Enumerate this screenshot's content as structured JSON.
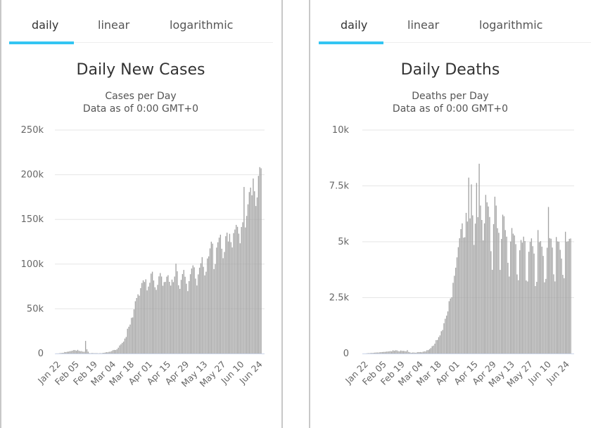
{
  "tabs": [
    "daily",
    "linear",
    "logarithmic"
  ],
  "active_tab": "daily",
  "colors": {
    "accent": "#33c5f3",
    "bar": "#a3a3a3",
    "grid": "#e6e6e6",
    "axis": "#ccd6eb"
  },
  "chart_data": [
    {
      "type": "bar",
      "title": "Daily New Cases",
      "subtitle": "Cases per Day",
      "subtitle2": "Data as of 0:00 GMT+0",
      "xlabel": "",
      "ylabel": "",
      "ylim": [
        0,
        250000
      ],
      "yticks": [
        0,
        50000,
        100000,
        150000,
        200000,
        250000
      ],
      "ytick_labels": [
        "0",
        "50k",
        "100k",
        "150k",
        "200k",
        "250k"
      ],
      "xtick_labels": [
        "Jan 22",
        "Feb 05",
        "Feb 19",
        "Mar 04",
        "Mar 18",
        "Apr 01",
        "Apr 15",
        "Apr 29",
        "May 13",
        "May 27",
        "Jun 10",
        "Jun 24"
      ],
      "start_date": "Jan 22",
      "grid": true,
      "values": [
        100,
        100,
        300,
        500,
        700,
        800,
        1700,
        1500,
        2000,
        2100,
        2600,
        2800,
        3200,
        3900,
        3700,
        3100,
        4100,
        3000,
        2600,
        2700,
        2000,
        2000,
        14100,
        4700,
        2100,
        400,
        300,
        600,
        400,
        300,
        400,
        300,
        200,
        400,
        300,
        600,
        800,
        1100,
        1500,
        1400,
        1900,
        2100,
        2800,
        3800,
        4000,
        3900,
        4800,
        6500,
        9000,
        10400,
        11900,
        13300,
        16700,
        18500,
        27700,
        30000,
        32400,
        39900,
        40400,
        49400,
        58500,
        62100,
        66200,
        64700,
        73100,
        78900,
        81900,
        80000,
        83000,
        70600,
        74900,
        79200,
        89400,
        91500,
        81700,
        74100,
        71200,
        76800,
        86300,
        90000,
        86100,
        75800,
        79900,
        80100,
        86000,
        87600,
        80200,
        76000,
        82700,
        79900,
        86100,
        100500,
        92000,
        76300,
        72300,
        82400,
        88900,
        93500,
        85900,
        78100,
        69800,
        81000,
        88700,
        95100,
        98600,
        96400,
        83800,
        76100,
        88500,
        96000,
        101000,
        107800,
        97000,
        87400,
        91500,
        106300,
        108700,
        117600,
        125100,
        122900,
        94400,
        100100,
        118500,
        124400,
        129600,
        132900,
        117200,
        106600,
        113600,
        131200,
        135200,
        125300,
        133900,
        124600,
        118600,
        134700,
        138700,
        143900,
        141700,
        134100,
        123300,
        141500,
        146800,
        186300,
        141000,
        153900,
        166900,
        180600,
        185600,
        177000,
        195800,
        181500,
        165000,
        174600,
        198700,
        208500,
        207200,
        0,
        0
      ],
      "unit": "cases"
    },
    {
      "type": "bar",
      "title": "Daily Deaths",
      "subtitle": "Deaths per Day",
      "subtitle2": "Data as of 0:00 GMT+0",
      "xlabel": "",
      "ylabel": "",
      "ylim": [
        0,
        10000
      ],
      "yticks": [
        0,
        2500,
        5000,
        7500,
        10000
      ],
      "ytick_labels": [
        "0",
        "2.5k",
        "5k",
        "7.5k",
        "10k"
      ],
      "xtick_labels": [
        "Jan 22",
        "Feb 05",
        "Feb 19",
        "Mar 04",
        "Mar 18",
        "Apr 01",
        "Apr 15",
        "Apr 29",
        "May 13",
        "May 27",
        "Jun 10",
        "Jun 24"
      ],
      "start_date": "Jan 22",
      "grid": true,
      "values": [
        0,
        1,
        8,
        16,
        15,
        24,
        26,
        26,
        38,
        43,
        46,
        45,
        57,
        64,
        66,
        73,
        73,
        86,
        89,
        97,
        108,
        97,
        146,
        121,
        143,
        142,
        106,
        98,
        136,
        115,
        118,
        109,
        97,
        150,
        71,
        52,
        29,
        44,
        47,
        35,
        42,
        64,
        62,
        66,
        56,
        78,
        96,
        93,
        149,
        152,
        196,
        244,
        328,
        353,
        442,
        597,
        606,
        734,
        811,
        996,
        1053,
        1354,
        1555,
        1694,
        1883,
        2342,
        2462,
        2520,
        3164,
        3479,
        3840,
        4302,
        4758,
        5159,
        5567,
        5822,
        5183,
        5203,
        6293,
        5905,
        7871,
        6045,
        7567,
        6181,
        4858,
        5813,
        7632,
        6100,
        8492,
        6620,
        5975,
        5060,
        5823,
        7098,
        6766,
        6580,
        6108,
        4578,
        3745,
        5789,
        7016,
        6620,
        5610,
        5401,
        3740,
        5125,
        6212,
        6143,
        5524,
        5228,
        4060,
        3446,
        5014,
        5614,
        5362,
        5283,
        4893,
        3539,
        3281,
        4620,
        5080,
        4962,
        5229,
        5033,
        3269,
        3224,
        4553,
        4997,
        5152,
        4803,
        4472,
        3017,
        3209,
        5524,
        4981,
        5028,
        4782,
        4367,
        3186,
        3339,
        4733,
        6557,
        5163,
        5136,
        4742,
        3542,
        3225,
        5211,
        5017,
        5001,
        4640,
        4249,
        3520,
        3370,
        5448,
        5003,
        5023,
        5130,
        5146,
        0,
        0
      ],
      "unit": "deaths"
    }
  ]
}
